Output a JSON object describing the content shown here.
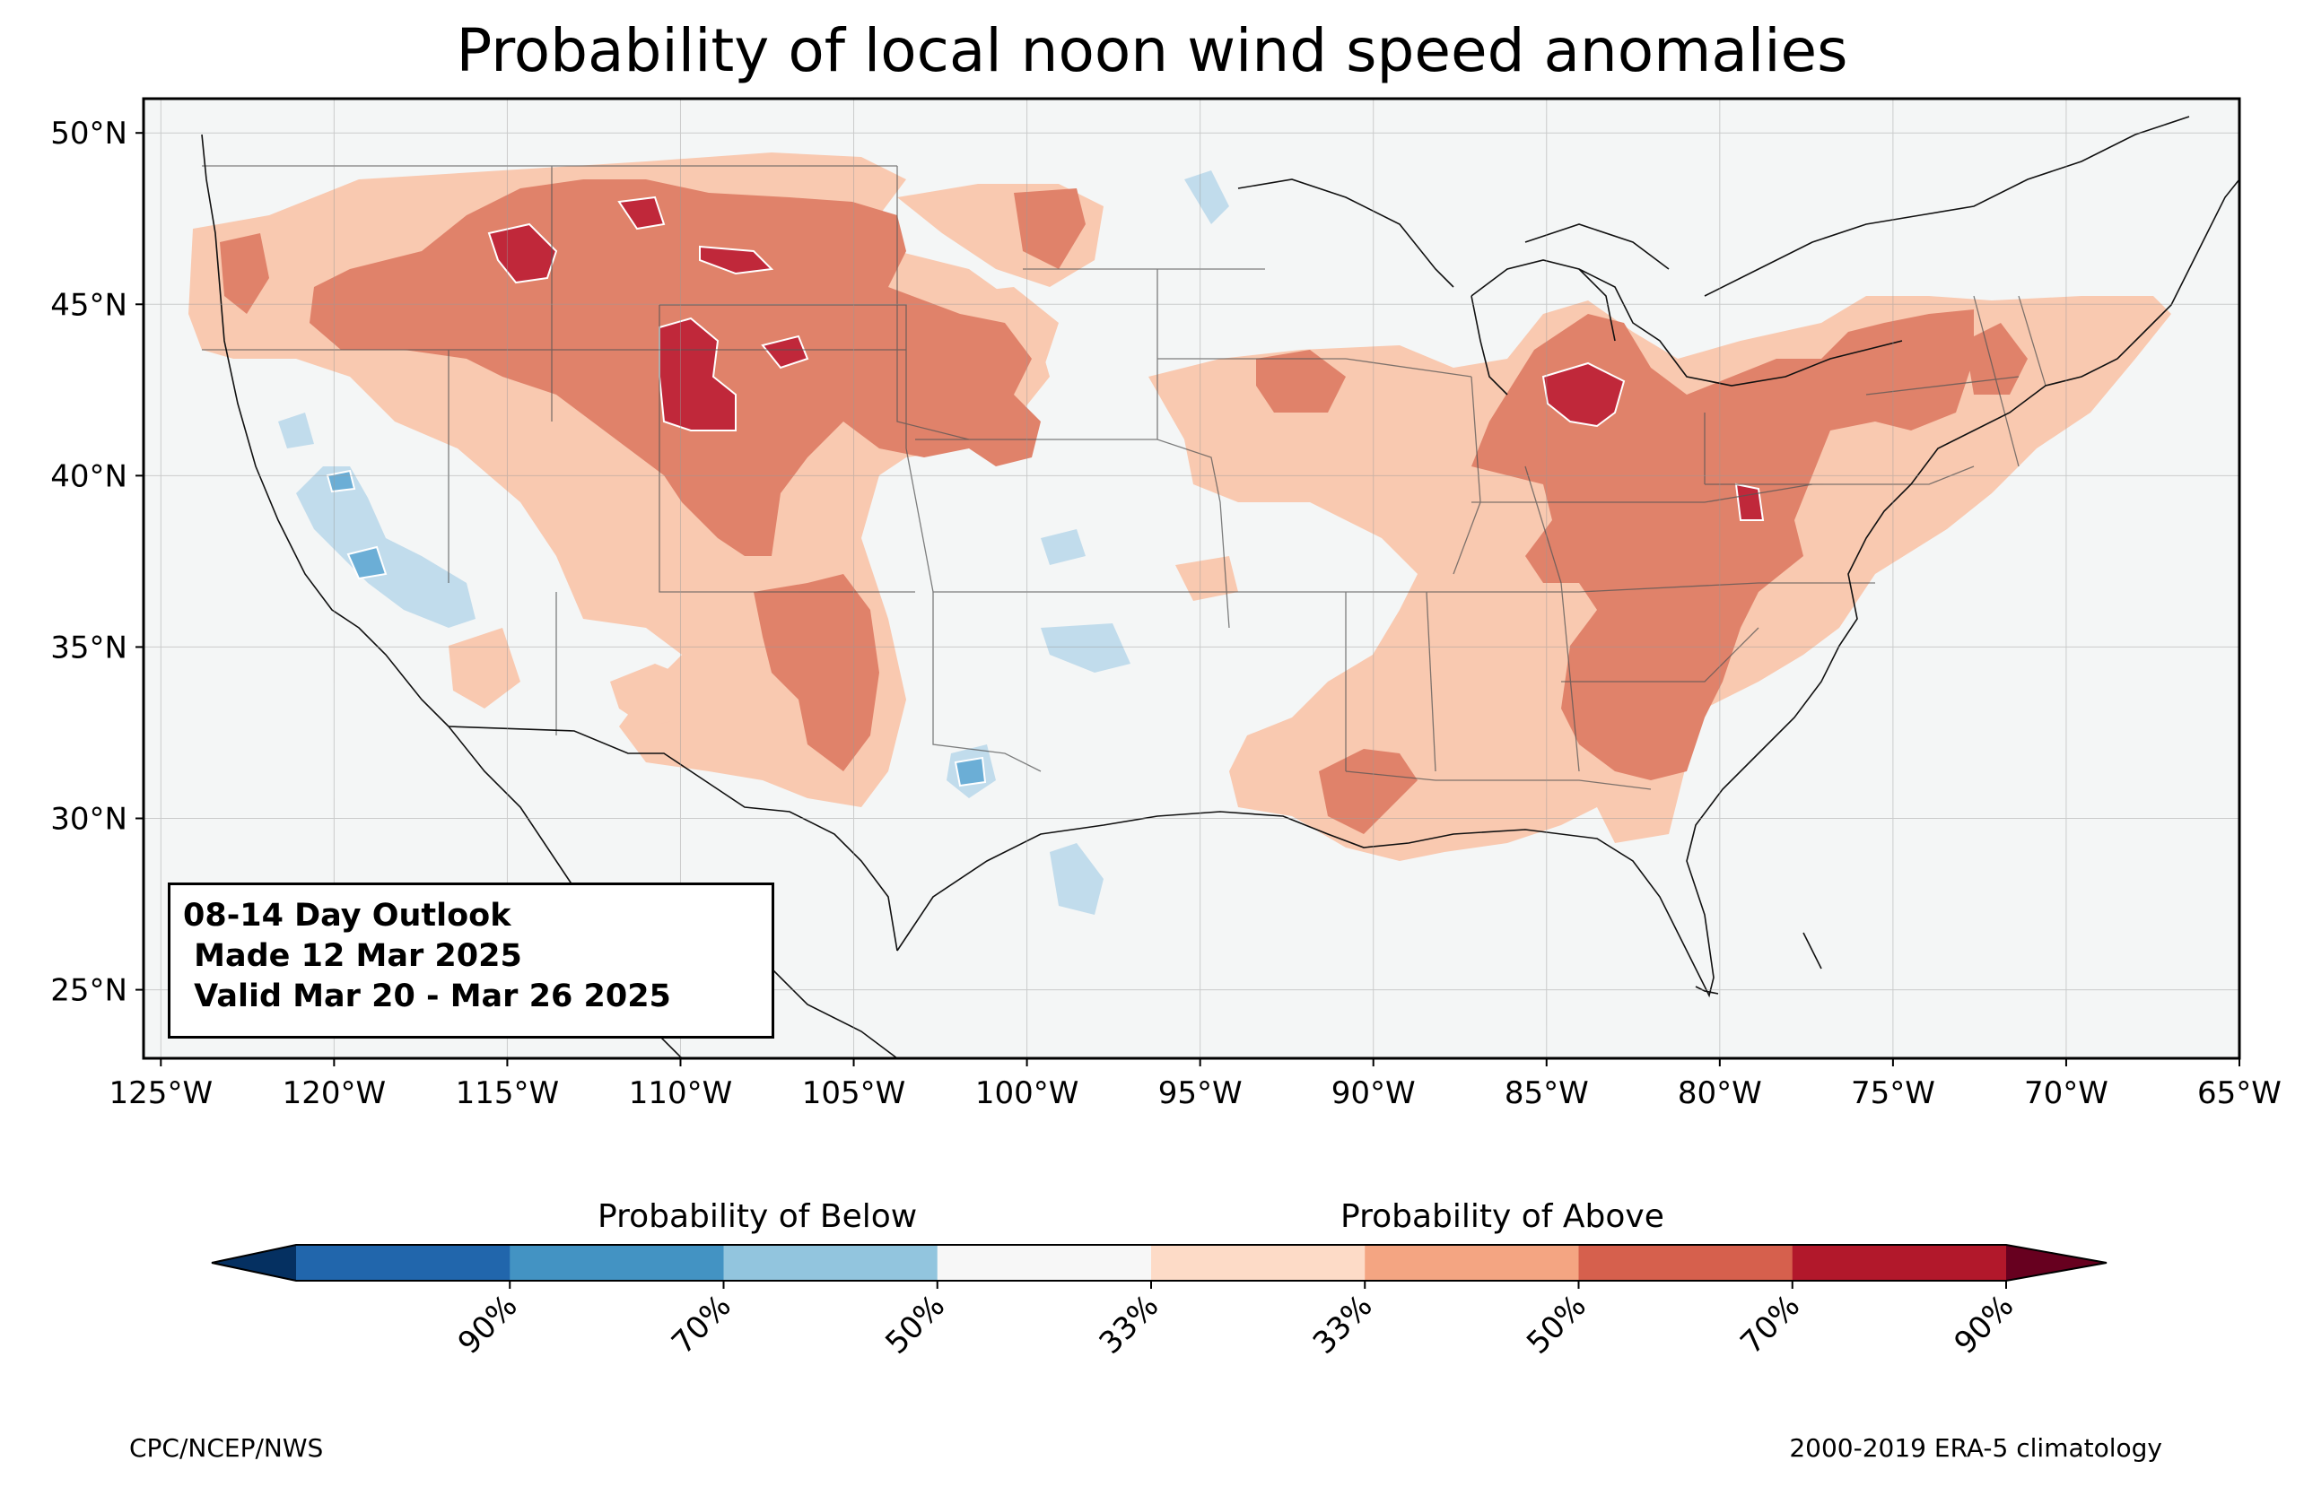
{
  "title": "Probability of local noon wind speed anomalies",
  "map": {
    "lat_ticks": [
      "50°N",
      "45°N",
      "40°N",
      "35°N",
      "30°N",
      "25°N"
    ],
    "lon_ticks": [
      "125°W",
      "120°W",
      "115°W",
      "110°W",
      "105°W",
      "100°W",
      "95°W",
      "90°W",
      "85°W",
      "80°W",
      "75°W",
      "70°W",
      "65°W"
    ],
    "lon_range": [
      -125.5,
      -65
    ],
    "lat_range": [
      23,
      51
    ],
    "grid": true,
    "background_color": "#f4f6f6"
  },
  "outlook": {
    "line1": "08-14 Day Outlook",
    "line2": " Made 12 Mar 2025",
    "line3": " Valid Mar 20 - Mar 26 2025"
  },
  "colorbar": {
    "below_label": "Probability of Below",
    "above_label": "Probability of Above",
    "tick_labels": [
      "90%",
      "70%",
      "50%",
      "33%",
      "33%",
      "50%",
      "70%",
      "90%"
    ],
    "colors": [
      "#053061",
      "#2166ac",
      "#4393c3",
      "#92c5de",
      "#f7f7f7",
      "#fddbc7",
      "#f4a582",
      "#d6604d",
      "#b2182b",
      "#67001f"
    ]
  },
  "legend_colors": {
    "below_50_70": "#6baed6",
    "below_33_50": "#c1dcec",
    "near_normal": "#f4f6f6",
    "above_33_50": "#f9c9b0",
    "above_50_70": "#e0826a",
    "above_70_90": "#c0283a"
  },
  "footer": {
    "left": "CPC/NCEP/NWS",
    "right": "2000-2019 ERA-5 climatology"
  }
}
